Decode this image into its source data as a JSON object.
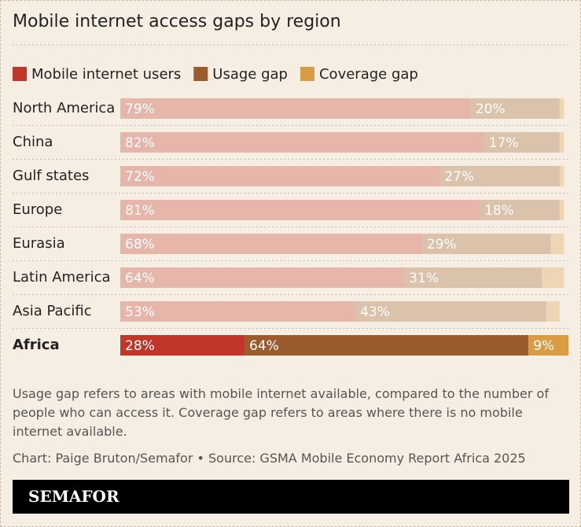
{
  "chart_data": {
    "type": "stacked-bar-horizontal",
    "title": "Mobile internet access gaps by region",
    "categories": [
      "North America",
      "China",
      "Gulf states",
      "Europe",
      "Eurasia",
      "Latin America",
      "Asia Pacific",
      "Africa"
    ],
    "series": [
      {
        "name": "Mobile internet users",
        "color": "#c0362a",
        "values": [
          79,
          82,
          72,
          81,
          68,
          64,
          53,
          28
        ],
        "value_labels": [
          "79%",
          "82%",
          "72%",
          "81%",
          "68%",
          "64%",
          "53%",
          "28%"
        ]
      },
      {
        "name": "Usage gap",
        "color": "#9a5c2c",
        "values": [
          20,
          17,
          27,
          18,
          29,
          31,
          43,
          64
        ],
        "value_labels": [
          "20%",
          "17%",
          "27%",
          "18%",
          "29%",
          "31%",
          "43%",
          "64%"
        ]
      },
      {
        "name": "Coverage gap",
        "color": "#d99c45",
        "values": [
          1,
          1,
          1,
          1,
          3,
          5,
          3,
          9
        ],
        "value_labels": [
          null,
          null,
          null,
          null,
          null,
          null,
          null,
          "9%"
        ]
      }
    ],
    "highlight": 7,
    "notes": [
      "Usage gap refers to areas with mobile internet available, compared to the number of people who can access it. Coverage gap refers to areas where there is no mobile internet available.",
      "Chart: Paige Bruton/Semafor  • Source: GSMA Mobile Economy Report Africa 2025"
    ],
    "brand": "SEMAFOR"
  }
}
